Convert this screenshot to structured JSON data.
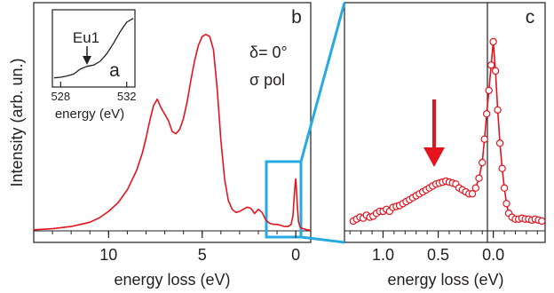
{
  "chart_data": [
    {
      "panel": "b",
      "type": "line",
      "panel_label": "b",
      "ylabel": "Intensity (arb. un.)",
      "xlabel": "energy loss (eV)",
      "x_reversed": true,
      "xlim": [
        14,
        -0.8
      ],
      "ylim": [
        0,
        1.02
      ],
      "xticks": [
        10,
        5,
        0
      ],
      "xtick_labels": [
        "10",
        "5",
        "0"
      ],
      "annotation_lines": [
        "δ= 0°",
        "σ pol"
      ],
      "series": [
        {
          "color": "#e3141e",
          "x": [
            14,
            13,
            12,
            11.5,
            11,
            10.5,
            10,
            9.5,
            9,
            8.5,
            8.2,
            8,
            7.8,
            7.6,
            7.4,
            7.2,
            7.0,
            6.8,
            6.6,
            6.4,
            6.2,
            6.0,
            5.8,
            5.6,
            5.4,
            5.2,
            5.0,
            4.8,
            4.6,
            4.4,
            4.2,
            4.0,
            3.8,
            3.6,
            3.4,
            3.2,
            3.0,
            2.8,
            2.6,
            2.4,
            2.2,
            2.0,
            1.8,
            1.6,
            1.4,
            1.2,
            1.0,
            0.8,
            0.6,
            0.4,
            0.25,
            0.15,
            0.08,
            0.03,
            0.0,
            -0.03,
            -0.08,
            -0.15,
            -0.25,
            -0.4,
            -0.6,
            -0.8
          ],
          "y": [
            0.005,
            0.01,
            0.02,
            0.03,
            0.04,
            0.06,
            0.09,
            0.13,
            0.19,
            0.28,
            0.36,
            0.43,
            0.51,
            0.58,
            0.61,
            0.57,
            0.54,
            0.51,
            0.46,
            0.45,
            0.47,
            0.52,
            0.6,
            0.7,
            0.79,
            0.86,
            0.9,
            0.91,
            0.9,
            0.84,
            0.66,
            0.42,
            0.24,
            0.14,
            0.1,
            0.085,
            0.09,
            0.1,
            0.11,
            0.105,
            0.08,
            0.1,
            0.085,
            0.05,
            0.035,
            0.03,
            0.03,
            0.025,
            0.02,
            0.02,
            0.03,
            0.07,
            0.16,
            0.22,
            0.24,
            0.2,
            0.12,
            0.04,
            0.015,
            0.01,
            0.005,
            0.003
          ]
        }
      ]
    },
    {
      "panel": "a",
      "type": "line",
      "inset": true,
      "panel_label": "a",
      "xlabel": "energy (eV)",
      "xlim": [
        527.5,
        532.5
      ],
      "ylim": [
        0,
        1
      ],
      "xticks": [
        528,
        532
      ],
      "xtick_labels": [
        "528",
        "532"
      ],
      "annotation": "Eu1",
      "series": [
        {
          "color": "#231f20",
          "x": [
            527.6,
            528.0,
            528.4,
            528.8,
            529.2,
            529.6,
            530.0,
            530.4,
            530.8,
            531.2,
            531.6,
            532.0,
            532.4
          ],
          "y": [
            0.06,
            0.07,
            0.09,
            0.12,
            0.2,
            0.24,
            0.26,
            0.32,
            0.44,
            0.6,
            0.78,
            0.93,
            0.99
          ]
        }
      ]
    },
    {
      "panel": "c",
      "type": "line",
      "panel_label": "c",
      "xlabel": "energy loss (eV)",
      "x_reversed": true,
      "xlim": [
        1.35,
        -0.47
      ],
      "ylim": [
        0,
        1.02
      ],
      "xticks": [
        1.0,
        0.5,
        0.0
      ],
      "xtick_labels": [
        "1.0",
        "0.5",
        "0.0"
      ],
      "series": [
        {
          "color": "#e3141e",
          "marker": "open-circle",
          "x": [
            1.27,
            1.24,
            1.21,
            1.18,
            1.15,
            1.12,
            1.09,
            1.06,
            1.03,
            1.0,
            0.97,
            0.94,
            0.91,
            0.88,
            0.85,
            0.82,
            0.79,
            0.76,
            0.73,
            0.7,
            0.67,
            0.64,
            0.61,
            0.58,
            0.55,
            0.52,
            0.49,
            0.46,
            0.43,
            0.4,
            0.37,
            0.34,
            0.31,
            0.28,
            0.25,
            0.22,
            0.19,
            0.16,
            0.13,
            0.1,
            0.08,
            0.06,
            0.04,
            0.02,
            0.0,
            -0.02,
            -0.04,
            -0.06,
            -0.08,
            -0.1,
            -0.12,
            -0.14,
            -0.17,
            -0.2,
            -0.23,
            -0.26,
            -0.29,
            -0.32,
            -0.35,
            -0.38,
            -0.41,
            -0.44
          ],
          "y": [
            0.05,
            0.06,
            0.07,
            0.065,
            0.08,
            0.07,
            0.075,
            0.09,
            0.1,
            0.1,
            0.11,
            0.1,
            0.12,
            0.125,
            0.13,
            0.14,
            0.15,
            0.16,
            0.17,
            0.18,
            0.19,
            0.2,
            0.21,
            0.22,
            0.23,
            0.24,
            0.245,
            0.25,
            0.255,
            0.25,
            0.245,
            0.24,
            0.22,
            0.21,
            0.2,
            0.19,
            0.19,
            0.22,
            0.27,
            0.35,
            0.47,
            0.6,
            0.72,
            0.85,
            0.97,
            0.82,
            0.62,
            0.45,
            0.32,
            0.22,
            0.14,
            0.09,
            0.07,
            0.06,
            0.06,
            0.065,
            0.06,
            0.06,
            0.055,
            0.06,
            0.055,
            0.05
          ]
        }
      ]
    }
  ],
  "arrow_color": "#e3141e",
  "zoom_color": "#27aae1"
}
